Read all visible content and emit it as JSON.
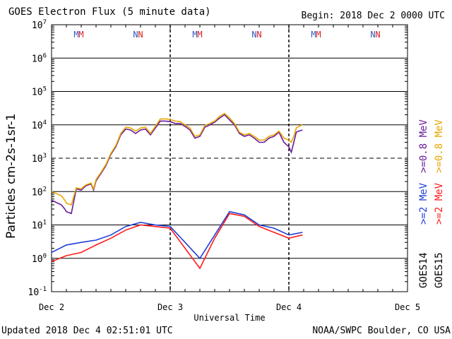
{
  "header": {
    "title": "GOES Electron Flux (5 minute data)",
    "begin": "Begin: 2018 Dec 2 0000 UTC"
  },
  "footer": {
    "updated": "Updated 2018 Dec  4 02:51:01 UTC",
    "credit": "NOAA/SWPC Boulder, CO USA"
  },
  "chart_data": {
    "type": "line",
    "title": "GOES Electron Flux (5 minute data)",
    "xlabel": "Universal Time",
    "ylabel": "Particles cm-2s-1sr-1",
    "yscale": "log",
    "ylim": [
      0.1,
      10000000
    ],
    "xlim": [
      "2018-12-02T00:00",
      "2018-12-05T00:00"
    ],
    "x_ticks": [
      "Dec 2",
      "Dec 3",
      "Dec 4",
      "Dec 5"
    ],
    "y_ticks": [
      "10^-1",
      "10^0",
      "10^1",
      "10^2",
      "10^3",
      "10^4",
      "10^5",
      "10^6",
      "10^7"
    ],
    "threshold": 1000,
    "satellites": [
      "GOES14",
      "GOES15"
    ],
    "legend_placement": "right",
    "top_markers": [
      {
        "text": "M",
        "x": "2018-12-02T05:00",
        "color": "#3355bb"
      },
      {
        "text": "M",
        "x": "2018-12-02T06:00",
        "color": "#dd2222"
      },
      {
        "text": "N",
        "x": "2018-12-02T17:00",
        "color": "#3355bb"
      },
      {
        "text": "N",
        "x": "2018-12-02T18:00",
        "color": "#dd2222"
      },
      {
        "text": "M",
        "x": "2018-12-03T05:00",
        "color": "#3355bb"
      },
      {
        "text": "M",
        "x": "2018-12-03T06:00",
        "color": "#dd2222"
      },
      {
        "text": "N",
        "x": "2018-12-03T17:00",
        "color": "#3355bb"
      },
      {
        "text": "N",
        "x": "2018-12-03T18:00",
        "color": "#dd2222"
      },
      {
        "text": "M",
        "x": "2018-12-04T05:00",
        "color": "#3355bb"
      },
      {
        "text": "M",
        "x": "2018-12-04T06:00",
        "color": "#dd2222"
      },
      {
        "text": "N",
        "x": "2018-12-04T17:00",
        "color": "#3355bb"
      },
      {
        "text": "N",
        "x": "2018-12-04T18:00",
        "color": "#dd2222"
      }
    ],
    "series": [
      {
        "name": ">=0.8 MeV",
        "satellite": "GOES14",
        "color": "#6a1b9a",
        "x": [
          "2018-12-02T00:00",
          "2018-12-02T02:00",
          "2018-12-02T02:40",
          "2018-12-02T03:00",
          "2018-12-02T04:00",
          "2018-12-02T05:00",
          "2018-12-02T06:00",
          "2018-12-02T06:30",
          "2018-12-02T07:00",
          "2018-12-02T08:00",
          "2018-12-02T08:30",
          "2018-12-02T09:00",
          "2018-12-02T10:00",
          "2018-12-02T11:00",
          "2018-12-02T12:00",
          "2018-12-02T13:00",
          "2018-12-02T14:00",
          "2018-12-02T15:00",
          "2018-12-02T16:00",
          "2018-12-02T17:00",
          "2018-12-02T18:00",
          "2018-12-02T19:00",
          "2018-12-02T20:00",
          "2018-12-02T21:00",
          "2018-12-02T22:00",
          "2018-12-02T23:00",
          "2018-12-03T00:00",
          "2018-12-03T01:00",
          "2018-12-03T02:00",
          "2018-12-03T03:00",
          "2018-12-03T04:00",
          "2018-12-03T05:00",
          "2018-12-03T06:00",
          "2018-12-03T07:00",
          "2018-12-03T08:00",
          "2018-12-03T09:00",
          "2018-12-03T10:00",
          "2018-12-03T11:00",
          "2018-12-03T12:00",
          "2018-12-03T13:00",
          "2018-12-03T14:00",
          "2018-12-03T15:00",
          "2018-12-03T16:00",
          "2018-12-03T17:00",
          "2018-12-03T18:00",
          "2018-12-03T19:00",
          "2018-12-03T20:00",
          "2018-12-03T21:00",
          "2018-12-03T22:00",
          "2018-12-03T23:00",
          "2018-12-04T00:00",
          "2018-12-04T00:30",
          "2018-12-04T01:00",
          "2018-12-04T01:30",
          "2018-12-04T02:00",
          "2018-12-04T02:45"
        ],
        "y": [
          55,
          40,
          30,
          25,
          22,
          120,
          110,
          130,
          150,
          170,
          110,
          210,
          350,
          600,
          1300,
          2200,
          5000,
          7500,
          7000,
          5500,
          7000,
          7500,
          5000,
          8000,
          13000,
          13000,
          12500,
          11000,
          11000,
          9000,
          7000,
          4000,
          4500,
          8500,
          10000,
          12000,
          16000,
          20000,
          14000,
          10000,
          5500,
          4500,
          5000,
          4000,
          3000,
          3000,
          4000,
          4500,
          6000,
          3000,
          2200,
          1500,
          3000,
          6000,
          6500,
          7000
        ]
      },
      {
        "name": ">=0.8 MeV",
        "satellite": "GOES15",
        "color": "#e8a600",
        "x": [
          "2018-12-02T00:00",
          "2018-12-02T02:00",
          "2018-12-02T02:40",
          "2018-12-02T03:00",
          "2018-12-02T04:00",
          "2018-12-02T05:00",
          "2018-12-02T06:00",
          "2018-12-02T06:30",
          "2018-12-02T07:00",
          "2018-12-02T08:00",
          "2018-12-02T08:30",
          "2018-12-02T09:00",
          "2018-12-02T10:00",
          "2018-12-02T11:00",
          "2018-12-02T12:00",
          "2018-12-02T13:00",
          "2018-12-02T14:00",
          "2018-12-02T15:00",
          "2018-12-02T16:00",
          "2018-12-02T17:00",
          "2018-12-02T18:00",
          "2018-12-02T19:00",
          "2018-12-02T20:00",
          "2018-12-02T21:00",
          "2018-12-02T22:00",
          "2018-12-02T23:00",
          "2018-12-03T00:00",
          "2018-12-03T01:00",
          "2018-12-03T02:00",
          "2018-12-03T03:00",
          "2018-12-03T04:00",
          "2018-12-03T05:00",
          "2018-12-03T06:00",
          "2018-12-03T07:00",
          "2018-12-03T08:00",
          "2018-12-03T09:00",
          "2018-12-03T10:00",
          "2018-12-03T11:00",
          "2018-12-03T12:00",
          "2018-12-03T13:00",
          "2018-12-03T14:00",
          "2018-12-03T15:00",
          "2018-12-03T16:00",
          "2018-12-03T17:00",
          "2018-12-03T18:00",
          "2018-12-03T19:00",
          "2018-12-03T20:00",
          "2018-12-03T21:00",
          "2018-12-03T22:00",
          "2018-12-03T23:00",
          "2018-12-04T00:00",
          "2018-12-04T00:30",
          "2018-12-04T01:00",
          "2018-12-04T01:30",
          "2018-12-04T02:00",
          "2018-12-04T02:45"
        ],
        "y": [
          100,
          75,
          55,
          45,
          40,
          130,
          120,
          140,
          160,
          180,
          120,
          230,
          380,
          650,
          1400,
          2400,
          5500,
          8500,
          8000,
          6500,
          8000,
          8500,
          5500,
          9000,
          15000,
          15000,
          14500,
          13000,
          12500,
          10000,
          8000,
          4500,
          5000,
          9500,
          11000,
          13000,
          18000,
          22000,
          16000,
          11000,
          6000,
          5000,
          5500,
          4500,
          3500,
          3500,
          4500,
          5000,
          6500,
          4000,
          3500,
          3000,
          4500,
          8000,
          9000,
          10000
        ]
      },
      {
        "name": ">=2 MeV",
        "satellite": "GOES14",
        "color": "#1f3fd6",
        "x": [
          "2018-12-02T00:00",
          "2018-12-02T03:00",
          "2018-12-02T06:00",
          "2018-12-02T09:00",
          "2018-12-02T12:00",
          "2018-12-02T15:00",
          "2018-12-02T18:00",
          "2018-12-02T21:00",
          "2018-12-03T00:00",
          "2018-12-03T03:00",
          "2018-12-03T06:00",
          "2018-12-03T09:00",
          "2018-12-03T12:00",
          "2018-12-03T15:00",
          "2018-12-03T18:00",
          "2018-12-03T21:00",
          "2018-12-04T00:00",
          "2018-12-04T02:45"
        ],
        "y": [
          1.5,
          2.5,
          3,
          3.5,
          5,
          9,
          12,
          10,
          9,
          3,
          1,
          5,
          25,
          20,
          10,
          8,
          5,
          6
        ]
      },
      {
        "name": ">=2 MeV",
        "satellite": "GOES15",
        "color": "#ff1a1a",
        "x": [
          "2018-12-02T00:00",
          "2018-12-02T03:00",
          "2018-12-02T06:00",
          "2018-12-02T09:00",
          "2018-12-02T12:00",
          "2018-12-02T15:00",
          "2018-12-02T18:00",
          "2018-12-02T21:00",
          "2018-12-03T00:00",
          "2018-12-03T03:00",
          "2018-12-03T06:00",
          "2018-12-03T09:00",
          "2018-12-03T12:00",
          "2018-12-03T15:00",
          "2018-12-03T18:00",
          "2018-12-03T21:00",
          "2018-12-04T00:00",
          "2018-12-04T02:45"
        ],
        "y": [
          0.8,
          1.2,
          1.5,
          2.5,
          4,
          7,
          10,
          9,
          8,
          2,
          0.5,
          4,
          22,
          18,
          9,
          6,
          4,
          5
        ]
      }
    ]
  }
}
